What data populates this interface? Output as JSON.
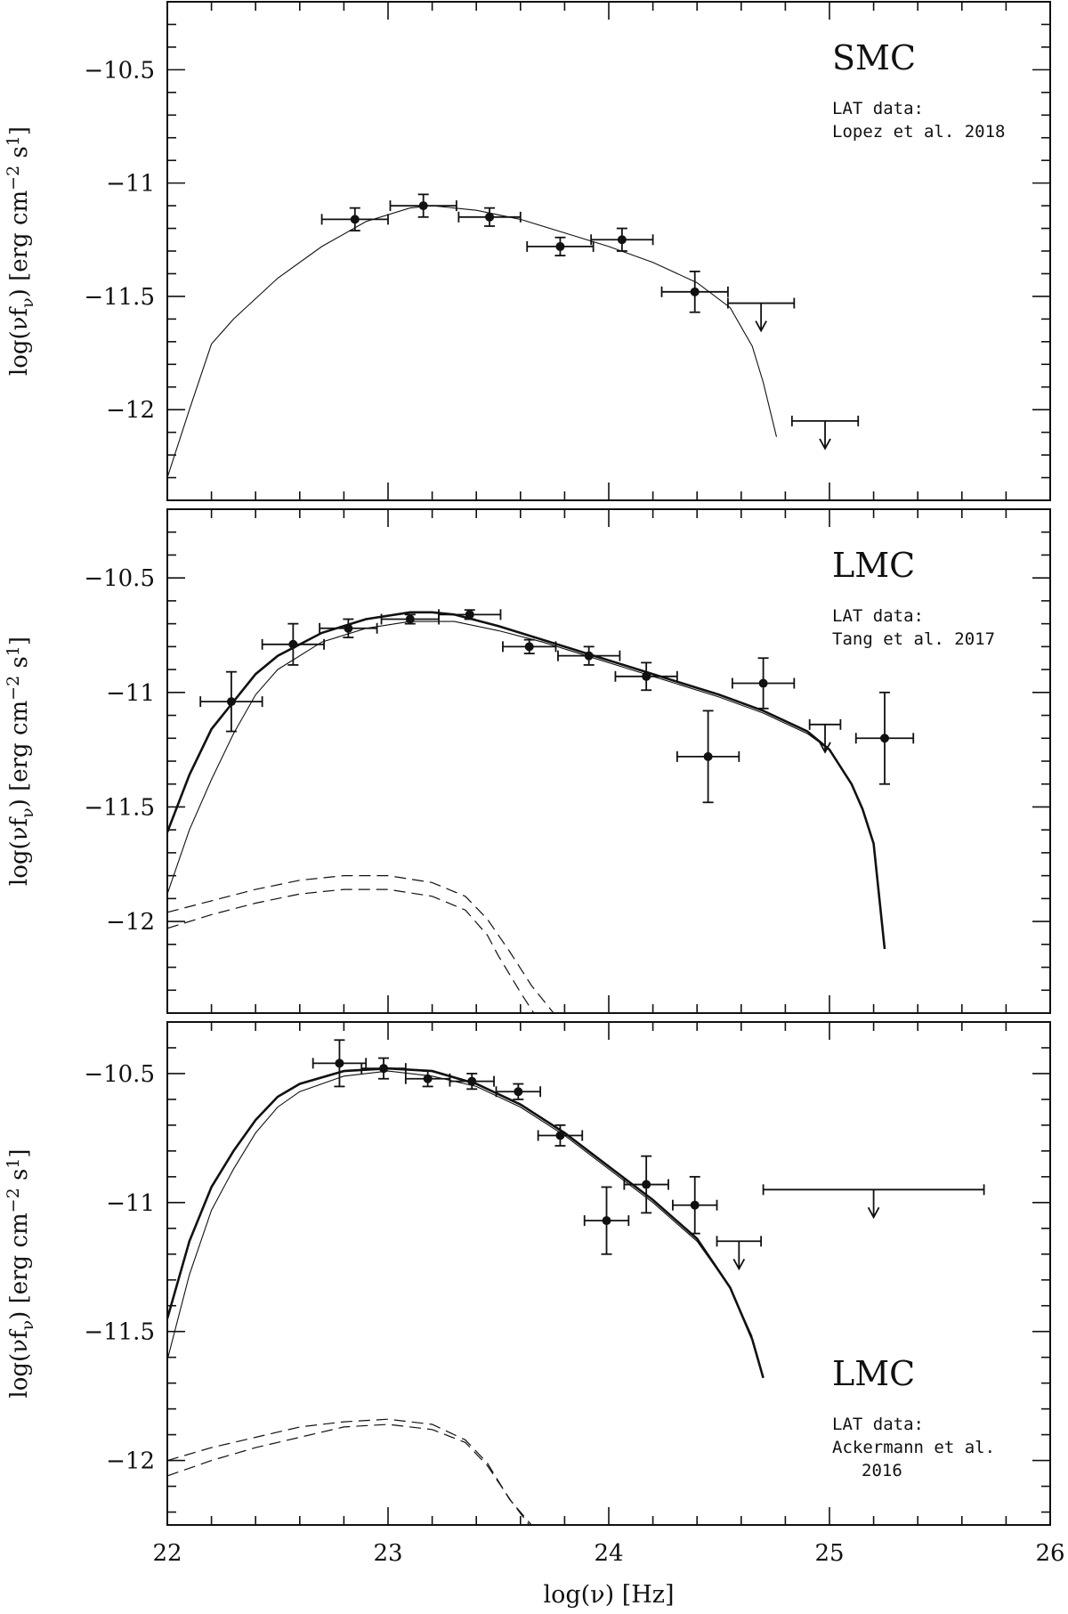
{
  "chart_data": [
    {
      "type": "scatter",
      "name": "SMC",
      "note_lines": [
        "LAT data:",
        "Lopez et al. 2018"
      ],
      "ylabel": "log(νf_ν) [erg cm⁻² s¹]",
      "xlim": [
        22,
        26
      ],
      "ylim": [
        -12.4,
        -10.2
      ],
      "yticks": [
        -10.5,
        -11,
        -11.5,
        -12
      ],
      "ytick_labels": [
        "−10.5",
        "−11",
        "−11.5",
        "−12"
      ],
      "points": [
        {
          "x": 22.85,
          "y": -11.16,
          "xerr": 0.15,
          "yerr": 0.05
        },
        {
          "x": 23.16,
          "y": -11.1,
          "xerr": 0.15,
          "yerr": 0.05
        },
        {
          "x": 23.46,
          "y": -11.15,
          "xerr": 0.14,
          "yerr": 0.04
        },
        {
          "x": 23.78,
          "y": -11.28,
          "xerr": 0.15,
          "yerr": 0.04
        },
        {
          "x": 24.06,
          "y": -11.25,
          "xerr": 0.14,
          "yerr": 0.05
        },
        {
          "x": 24.39,
          "y": -11.48,
          "xerr": 0.15,
          "yerr": 0.09
        }
      ],
      "upper_limits": [
        {
          "x": 24.69,
          "y": -11.53,
          "xerr": 0.15
        },
        {
          "x": 24.98,
          "y": -12.05,
          "xerr": 0.15
        }
      ],
      "series": [
        {
          "style": "thin",
          "x": [
            22.0,
            22.1,
            22.2,
            22.3,
            22.5,
            22.7,
            22.9,
            23.1,
            23.2,
            23.4,
            23.6,
            23.8,
            24.0,
            24.2,
            24.4,
            24.55,
            24.65,
            24.7,
            24.76
          ],
          "y": [
            -12.3,
            -12.0,
            -11.71,
            -11.6,
            -11.42,
            -11.28,
            -11.17,
            -11.11,
            -11.1,
            -11.12,
            -11.16,
            -11.22,
            -11.28,
            -11.35,
            -11.44,
            -11.55,
            -11.72,
            -11.88,
            -12.12
          ]
        }
      ]
    },
    {
      "type": "scatter",
      "name": "LMC",
      "note_lines": [
        "LAT data:",
        "Tang et al. 2017"
      ],
      "ylabel": "log(νf_ν) [erg cm⁻² s¹]",
      "xlim": [
        22,
        26
      ],
      "ylim": [
        -12.4,
        -10.2
      ],
      "yticks": [
        -10.5,
        -11,
        -11.5,
        -12
      ],
      "ytick_labels": [
        "−10.5",
        "−11",
        "−11.5",
        "−12"
      ],
      "points": [
        {
          "x": 22.29,
          "y": -11.04,
          "xerr": 0.14,
          "yerr": 0.13
        },
        {
          "x": 22.57,
          "y": -10.79,
          "xerr": 0.14,
          "yerr": 0.09
        },
        {
          "x": 22.82,
          "y": -10.72,
          "xerr": 0.13,
          "yerr": 0.04
        },
        {
          "x": 23.1,
          "y": -10.68,
          "xerr": 0.13,
          "yerr": 0.02
        },
        {
          "x": 23.37,
          "y": -10.66,
          "xerr": 0.14,
          "yerr": 0.02
        },
        {
          "x": 23.64,
          "y": -10.8,
          "xerr": 0.12,
          "yerr": 0.03
        },
        {
          "x": 23.91,
          "y": -10.84,
          "xerr": 0.14,
          "yerr": 0.04
        },
        {
          "x": 24.17,
          "y": -10.93,
          "xerr": 0.14,
          "yerr": 0.06
        },
        {
          "x": 24.45,
          "y": -11.28,
          "xerr": 0.14,
          "yerr": 0.2
        },
        {
          "x": 24.7,
          "y": -10.96,
          "xerr": 0.14,
          "yerr": 0.11
        },
        {
          "x": 25.25,
          "y": -11.2,
          "xerr": 0.13,
          "yerr": 0.2
        }
      ],
      "upper_limits": [
        {
          "x": 24.98,
          "y": -11.14,
          "xerr": 0.07
        }
      ],
      "series": [
        {
          "style": "thick",
          "x": [
            22.0,
            22.1,
            22.2,
            22.3,
            22.4,
            22.5,
            22.7,
            22.9,
            23.1,
            23.2,
            23.3,
            23.5,
            23.7,
            23.9,
            24.1,
            24.3,
            24.5,
            24.7,
            24.9,
            25.0,
            25.1,
            25.15,
            25.2,
            25.25
          ],
          "y": [
            -11.61,
            -11.36,
            -11.16,
            -11.04,
            -10.92,
            -10.84,
            -10.74,
            -10.68,
            -10.65,
            -10.65,
            -10.66,
            -10.71,
            -10.77,
            -10.83,
            -10.89,
            -10.95,
            -11.01,
            -11.08,
            -11.17,
            -11.25,
            -11.4,
            -11.51,
            -11.66,
            -12.12
          ]
        },
        {
          "style": "thin",
          "x": [
            22.0,
            22.1,
            22.2,
            22.3,
            22.4,
            22.5,
            22.7,
            22.9,
            23.1,
            23.3,
            23.5,
            23.7,
            23.9,
            24.1,
            24.3,
            24.5,
            24.7,
            24.9,
            25.0
          ],
          "y": [
            -11.88,
            -11.6,
            -11.38,
            -11.18,
            -11.01,
            -10.9,
            -10.78,
            -10.72,
            -10.69,
            -10.69,
            -10.73,
            -10.78,
            -10.84,
            -10.9,
            -10.96,
            -11.02,
            -11.09,
            -11.18,
            -11.25
          ]
        },
        {
          "style": "dashed",
          "x": [
            22.0,
            22.2,
            22.4,
            22.6,
            22.8,
            22.9,
            23.0,
            23.2,
            23.35,
            23.45,
            23.55,
            23.65,
            23.75
          ],
          "y": [
            -11.96,
            -11.91,
            -11.86,
            -11.82,
            -11.8,
            -11.8,
            -11.8,
            -11.83,
            -11.89,
            -11.99,
            -12.13,
            -12.28,
            -12.4
          ]
        },
        {
          "style": "dashed",
          "x": [
            22.0,
            22.2,
            22.4,
            22.6,
            22.8,
            22.9,
            23.0,
            23.2,
            23.35,
            23.45,
            23.5,
            23.6,
            23.66
          ],
          "y": [
            -12.03,
            -11.97,
            -11.92,
            -11.88,
            -11.86,
            -11.86,
            -11.86,
            -11.89,
            -11.95,
            -12.06,
            -12.15,
            -12.31,
            -12.4
          ]
        }
      ]
    },
    {
      "type": "scatter",
      "name": "LMC",
      "note_lines": [
        "LAT data:",
        "Ackermann et al.",
        "2016"
      ],
      "xlabel": "log(ν) [Hz]",
      "ylabel": "log(νf_ν) [erg cm⁻² s¹]",
      "xlim": [
        22,
        26
      ],
      "ylim": [
        -12.25,
        -10.3
      ],
      "xticks": [
        22,
        23,
        24,
        25,
        26
      ],
      "xtick_labels": [
        "22",
        "23",
        "24",
        "25",
        "26"
      ],
      "yticks": [
        -10.5,
        -11,
        -11.5,
        -12
      ],
      "ytick_labels": [
        "−10.5",
        "−11",
        "−11.5",
        "−12"
      ],
      "points": [
        {
          "x": 22.78,
          "y": -10.46,
          "xerr": 0.12,
          "yerr": 0.09
        },
        {
          "x": 22.98,
          "y": -10.48,
          "xerr": 0.1,
          "yerr": 0.04
        },
        {
          "x": 23.18,
          "y": -10.52,
          "xerr": 0.1,
          "yerr": 0.03
        },
        {
          "x": 23.38,
          "y": -10.53,
          "xerr": 0.1,
          "yerr": 0.03
        },
        {
          "x": 23.59,
          "y": -10.57,
          "xerr": 0.1,
          "yerr": 0.03
        },
        {
          "x": 23.78,
          "y": -10.74,
          "xerr": 0.1,
          "yerr": 0.04
        },
        {
          "x": 23.99,
          "y": -11.07,
          "xerr": 0.1,
          "yerr": 0.13
        },
        {
          "x": 24.17,
          "y": -10.93,
          "xerr": 0.1,
          "yerr": 0.11
        },
        {
          "x": 24.39,
          "y": -11.01,
          "xerr": 0.1,
          "yerr": 0.11
        }
      ],
      "upper_limits": [
        {
          "x": 24.59,
          "y": -11.15,
          "xerr": 0.1
        },
        {
          "x": 25.2,
          "y": -10.95,
          "xerr": 0.5
        }
      ],
      "series": [
        {
          "style": "thick",
          "x": [
            22.0,
            22.1,
            22.2,
            22.3,
            22.4,
            22.5,
            22.6,
            22.8,
            23.0,
            23.2,
            23.4,
            23.6,
            23.8,
            24.0,
            24.2,
            24.4,
            24.55,
            24.65,
            24.7
          ],
          "y": [
            -11.45,
            -11.15,
            -10.94,
            -10.8,
            -10.68,
            -10.59,
            -10.54,
            -10.49,
            -10.48,
            -10.49,
            -10.54,
            -10.62,
            -10.73,
            -10.86,
            -10.99,
            -11.14,
            -11.33,
            -11.53,
            -11.68
          ]
        },
        {
          "style": "thin",
          "x": [
            22.0,
            22.1,
            22.2,
            22.3,
            22.4,
            22.5,
            22.6,
            22.8,
            23.0,
            23.2,
            23.4,
            23.6,
            23.8,
            24.0,
            24.2,
            24.4,
            24.55,
            24.65
          ],
          "y": [
            -11.61,
            -11.28,
            -11.03,
            -10.87,
            -10.73,
            -10.63,
            -10.57,
            -10.51,
            -10.49,
            -10.51,
            -10.55,
            -10.63,
            -10.74,
            -10.87,
            -11.0,
            -11.15,
            -11.33,
            -11.52
          ]
        },
        {
          "style": "dashed",
          "x": [
            22.0,
            22.2,
            22.4,
            22.6,
            22.8,
            23.0,
            23.2,
            23.35,
            23.45,
            23.55,
            23.65
          ],
          "y": [
            -12.0,
            -11.95,
            -11.91,
            -11.87,
            -11.85,
            -11.84,
            -11.86,
            -11.92,
            -12.01,
            -12.15,
            -12.25
          ]
        },
        {
          "style": "dashed",
          "x": [
            22.0,
            22.2,
            22.4,
            22.6,
            22.8,
            23.0,
            23.2,
            23.35,
            23.45,
            23.56,
            23.64
          ],
          "y": [
            -12.06,
            -12.0,
            -11.95,
            -11.91,
            -11.87,
            -11.86,
            -11.88,
            -11.93,
            -12.02,
            -12.16,
            -12.25
          ]
        }
      ]
    }
  ]
}
